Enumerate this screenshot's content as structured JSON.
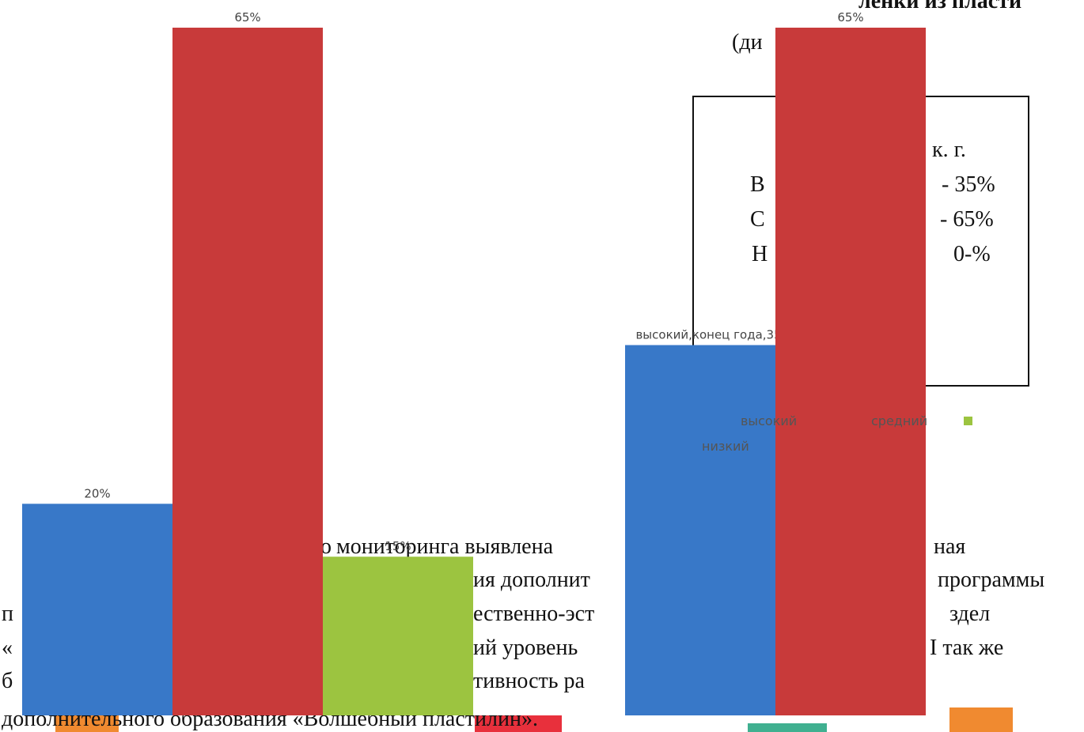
{
  "document": {
    "heading": "ленки из пласти",
    "subheading_left": "(ди",
    "subheading_right": ")",
    "box": {
      "period": "к. г.",
      "rows": [
        [
          "В",
          "- 35%"
        ],
        [
          "С",
          "- 65%"
        ],
        [
          "Н",
          "0-%"
        ]
      ]
    },
    "paragraph": [
      [
        "о",
        "мониторинга выявлена",
        "ная"
      ],
      [
        "ия дополнит",
        "программы"
      ],
      [
        "п",
        "ественно-эст",
        "здел"
      ],
      [
        "«",
        "ий уровень",
        "I так же"
      ],
      [
        "б",
        "тивность ра"
      ],
      [
        "дополнительного образования «Волшебный пластилин»."
      ]
    ]
  },
  "chart_data": {
    "type": "bar",
    "categories": [
      null,
      null
    ],
    "ylim": [
      0,
      65
    ],
    "series": [
      {
        "name": "высокий",
        "color": "#3878c8",
        "values": [
          20,
          35
        ],
        "value_labels": [
          "20%",
          "высокий,конец года,35%,64%"
        ]
      },
      {
        "name": "средний",
        "color": "#c83a3a",
        "values": [
          65,
          65
        ],
        "value_labels": [
          "65%",
          "65%"
        ]
      },
      {
        "name": "низкий",
        "color": "#9cc440",
        "values": [
          15,
          0
        ],
        "value_labels": [
          "15%",
          null
        ]
      }
    ]
  }
}
